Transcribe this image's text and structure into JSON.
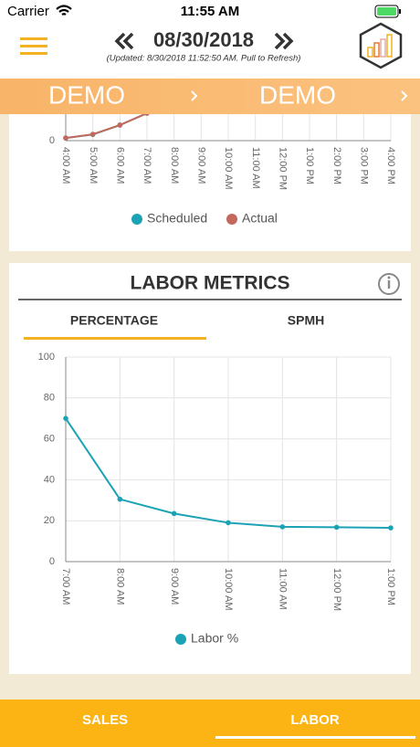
{
  "status_bar": {
    "carrier": "Carrier",
    "time": "11:55 AM"
  },
  "header": {
    "date": "08/30/2018",
    "updated": "(Updated: 8/30/2018 11:52:50 AM. Pull to Refresh)"
  },
  "banner": [
    "DEMO",
    "DEMO"
  ],
  "sales_chart": {
    "type": "line",
    "categories": [
      "4:00 AM",
      "5:00 AM",
      "6:00 AM",
      "7:00 AM",
      "8:00 AM",
      "9:00 AM",
      "10:00 AM",
      "11:00 AM",
      "12:00 PM",
      "1:00 PM",
      "2:00 PM",
      "3:00 PM",
      "4:00 PM"
    ],
    "series": [
      {
        "name": "Scheduled",
        "color": "#1ba3b5",
        "values": [
          1.3,
          3,
          7.6,
          13.4,
          null,
          null,
          null,
          null,
          null,
          null,
          null,
          null,
          null
        ]
      },
      {
        "name": "Actual",
        "color": "#c4685c",
        "values": [
          1.3,
          3.1,
          7.6,
          13.4,
          null,
          null,
          null,
          null,
          null,
          null,
          null,
          null,
          null
        ]
      }
    ],
    "ylim": [
      0,
      100
    ],
    "yticks": [
      0
    ],
    "grid": true,
    "legend": "bottom"
  },
  "labor_metrics": {
    "title": "LABOR METRICS",
    "tabs": [
      "PERCENTAGE",
      "SPMH"
    ],
    "active_tab": 0,
    "chart": {
      "type": "line",
      "categories": [
        "7:00 AM",
        "8:00 AM",
        "9:00 AM",
        "10:00 AM",
        "11:00 AM",
        "12:00 PM",
        "1:00 PM"
      ],
      "series": [
        {
          "name": "Labor %",
          "color": "#1ba3b5",
          "values": [
            70,
            30.5,
            23.5,
            19,
            17,
            16.8,
            16.5
          ]
        }
      ],
      "ylim": [
        0,
        100
      ],
      "yticks": [
        0,
        20,
        40,
        60,
        80,
        100
      ],
      "grid": true,
      "legend": "bottom"
    }
  },
  "bottom_tabs": {
    "items": [
      "SALES",
      "LABOR"
    ],
    "active": 1
  }
}
